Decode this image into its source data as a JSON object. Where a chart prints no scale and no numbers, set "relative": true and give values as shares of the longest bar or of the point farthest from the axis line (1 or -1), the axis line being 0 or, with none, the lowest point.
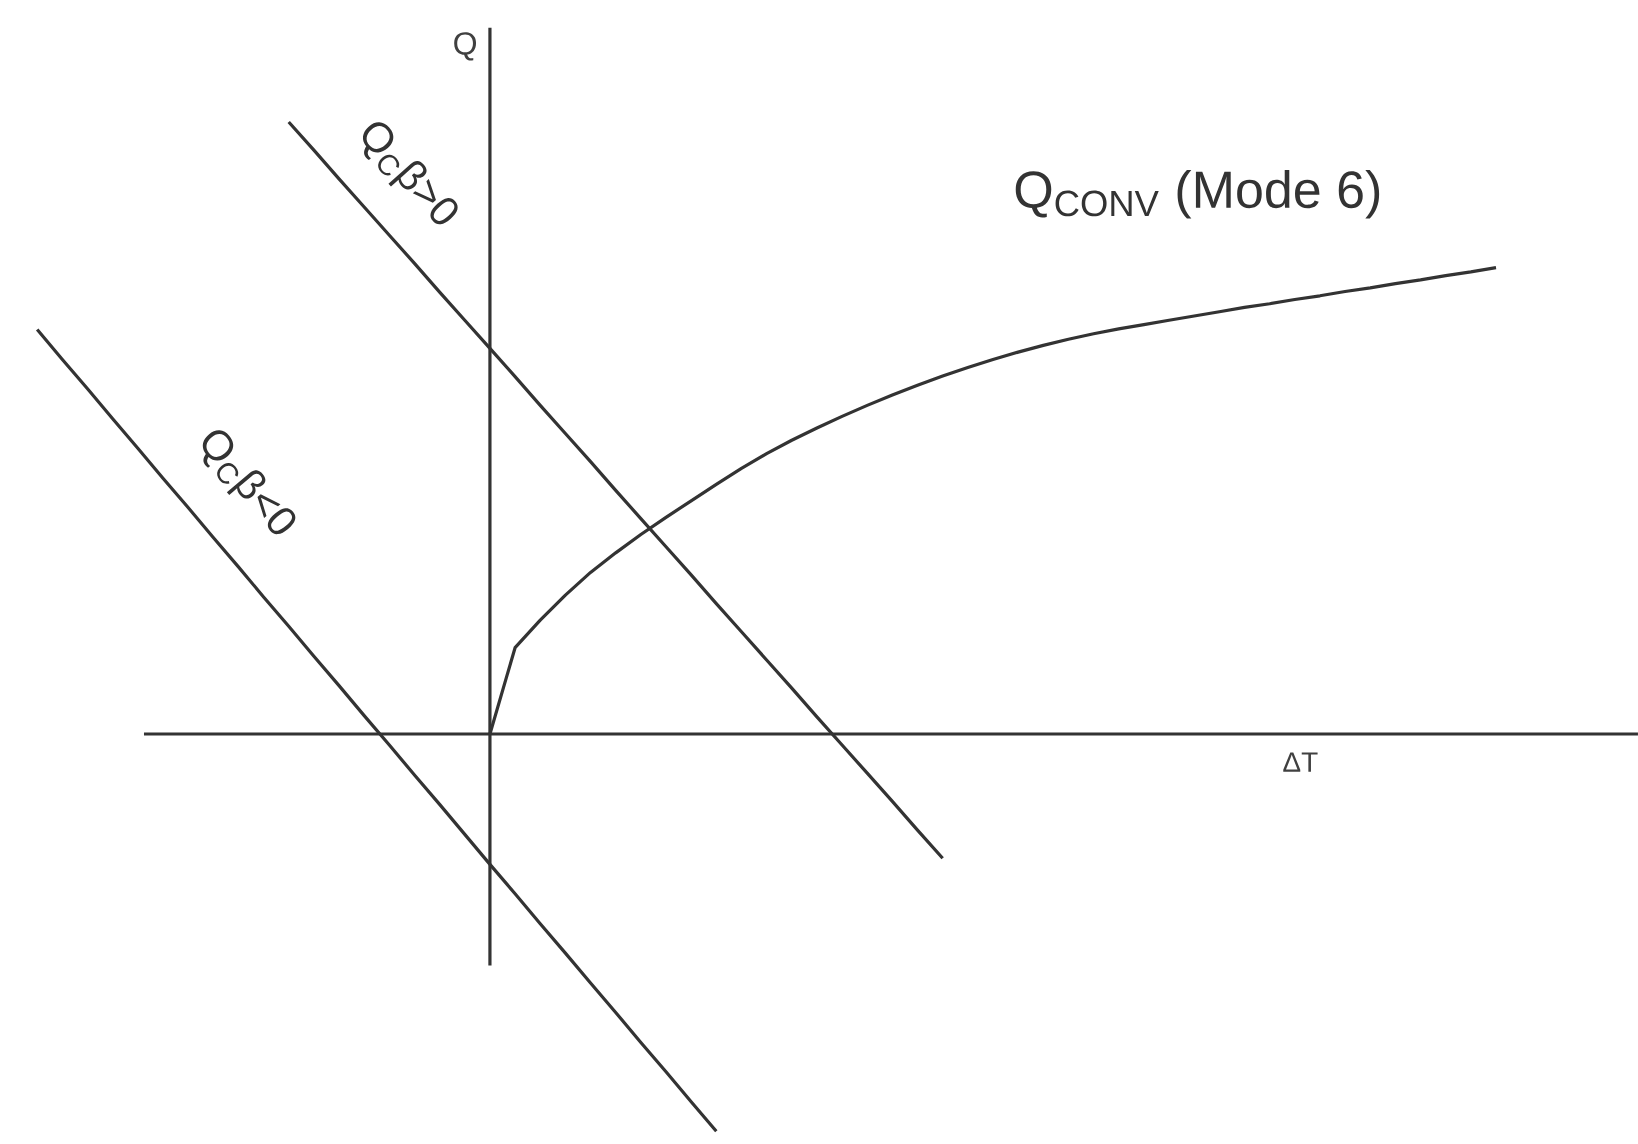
{
  "chart_data": {
    "type": "line",
    "relative": true,
    "xlabel": "ΔT",
    "ylabel": "Q",
    "marker": "none",
    "line_style": "solid",
    "categories": [
      null,
      null,
      null,
      null,
      null,
      null,
      null,
      null,
      null,
      null,
      null,
      null,
      null,
      null,
      null,
      null,
      null,
      null,
      null,
      null,
      null,
      null,
      null,
      null,
      null,
      null,
      null,
      null,
      null,
      null,
      null,
      null,
      null,
      null,
      null,
      null,
      null,
      null,
      null,
      null,
      null,
      null,
      null,
      null,
      null,
      null,
      null,
      null,
      null,
      null,
      null,
      null,
      null,
      null,
      null,
      null,
      null,
      null,
      null
    ],
    "series": [
      {
        "name": "Q$_{CONV}$ (Mode 6)",
        "color": "#333333",
        "values": [
          null,
          null,
          null,
          null,
          null,
          null,
          null,
          null,
          null,
          null,
          null,
          null,
          null,
          null,
          null,
          null,
          null,
          null,
          0,
          0.141,
          0.186,
          0.227,
          0.264,
          0.296,
          0.326,
          0.354,
          0.381,
          0.408,
          0.434,
          0.458,
          0.48,
          0.5,
          0.519,
          0.537,
          0.554,
          0.57,
          0.585,
          0.599,
          0.612,
          0.624,
          0.635,
          0.645,
          0.654,
          0.662,
          0.669,
          0.676,
          0.683,
          0.69,
          0.697,
          0.703,
          0.71,
          0.716,
          0.723,
          0.729,
          0.736,
          0.742,
          0.749,
          0.755,
          0.762
        ]
      },
      {
        "name": "Q$_{C}$β>0",
        "color": "#333333",
        "values": [
          null,
          null,
          null,
          null,
          null,
          null,
          null,
          null,
          null,
          null,
          1,
          0.954,
          0.907,
          0.861,
          0.815,
          0.769,
          0.722,
          0.676,
          0.63,
          0.584,
          0.537,
          0.491,
          0.445,
          0.398,
          0.352,
          0.306,
          0.26,
          0.213,
          0.167,
          0.121,
          0.075,
          0.028,
          -0.018,
          -0.064,
          -0.11,
          -0.157,
          -0.203,
          null,
          null,
          null,
          null,
          null,
          null,
          null,
          null,
          null,
          null,
          null,
          null,
          null,
          null,
          null,
          null,
          null,
          null,
          null,
          null,
          null,
          null
        ]
      },
      {
        "name": "Q$_{C}$β<0",
        "color": "#333333",
        "values": [
          0.661,
          0.612,
          0.564,
          0.515,
          0.467,
          0.418,
          0.37,
          0.321,
          0.273,
          0.224,
          0.176,
          0.127,
          0.079,
          0.03,
          -0.018,
          -0.067,
          -0.115,
          -0.164,
          -0.213,
          -0.261,
          -0.31,
          -0.358,
          -0.407,
          -0.455,
          -0.504,
          -0.552,
          -0.601,
          -0.649,
          null,
          null,
          null,
          null,
          null,
          null,
          null,
          null,
          null,
          null,
          null,
          null,
          null,
          null,
          null,
          null,
          null,
          null,
          null,
          null,
          null,
          null,
          null,
          null,
          null,
          null,
          null,
          null,
          null,
          null,
          null
        ]
      }
    ]
  }
}
